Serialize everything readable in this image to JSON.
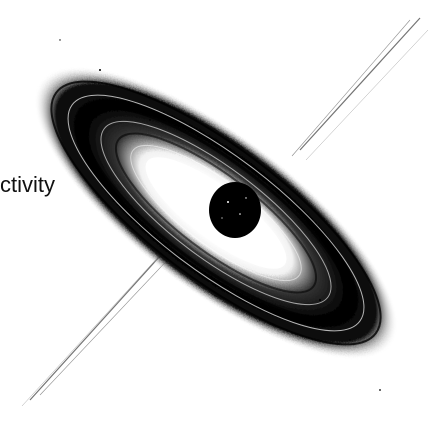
{
  "caption": {
    "text": "ctivity"
  },
  "illustration": {
    "subject": "black-hole-accretion-disk-icon",
    "ink_color": "#000000",
    "paper_color": "#ffffff"
  }
}
